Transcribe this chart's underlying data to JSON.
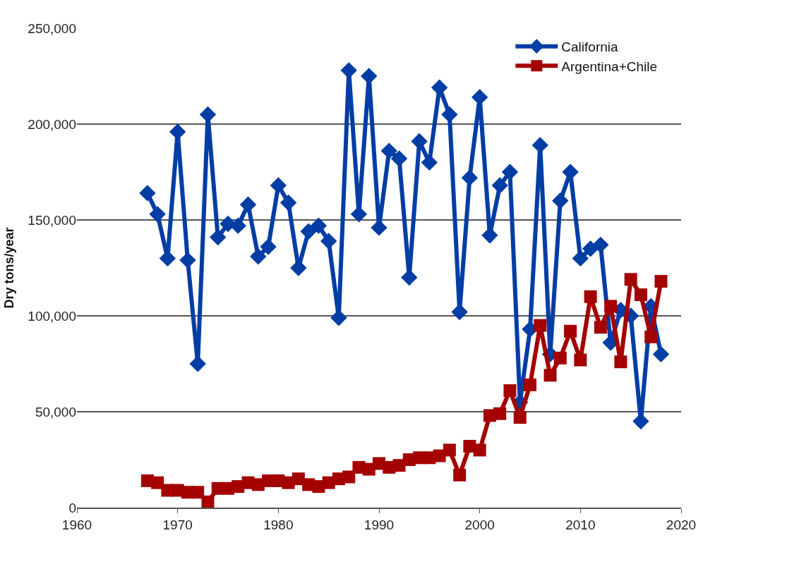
{
  "chart_data": {
    "type": "line",
    "ylabel": "Dry tons/year",
    "x": [
      1967,
      1968,
      1969,
      1970,
      1971,
      1972,
      1973,
      1974,
      1975,
      1976,
      1977,
      1978,
      1979,
      1980,
      1981,
      1982,
      1983,
      1984,
      1985,
      1986,
      1987,
      1988,
      1989,
      1990,
      1991,
      1992,
      1993,
      1994,
      1995,
      1996,
      1997,
      1998,
      1999,
      2000,
      2001,
      2002,
      2003,
      2004,
      2005,
      2006,
      2007,
      2008,
      2009,
      2010,
      2011,
      2012,
      2013,
      2014,
      2015,
      2016,
      2017,
      2018
    ],
    "series": [
      {
        "name": "California",
        "color": "#003da5",
        "marker": "diamond",
        "values": [
          164000,
          153000,
          130000,
          196000,
          129000,
          75000,
          205000,
          141000,
          148000,
          147000,
          158000,
          131000,
          136000,
          168000,
          159000,
          125000,
          144000,
          147000,
          139000,
          99000,
          228000,
          153000,
          225000,
          146000,
          186000,
          182000,
          120000,
          191000,
          180000,
          219000,
          205000,
          102000,
          172000,
          214000,
          142000,
          168000,
          175000,
          55000,
          93000,
          189000,
          80000,
          160000,
          175000,
          130000,
          135000,
          137000,
          86000,
          103000,
          100000,
          45000,
          105000,
          80000
        ]
      },
      {
        "name": "Argentina+Chile",
        "color": "#a50000",
        "marker": "square",
        "values": [
          14000,
          13000,
          9000,
          9000,
          8000,
          8000,
          3000,
          10000,
          10000,
          11000,
          13000,
          12000,
          14000,
          14000,
          13000,
          15000,
          12000,
          11000,
          13000,
          15000,
          16000,
          21000,
          20000,
          23000,
          21000,
          22000,
          25000,
          26000,
          26000,
          27000,
          30000,
          17000,
          32000,
          30000,
          48000,
          49000,
          61000,
          47000,
          64000,
          95000,
          69000,
          78000,
          92000,
          77000,
          110000,
          94000,
          105000,
          76000,
          119000,
          111000,
          89000,
          118000
        ]
      }
    ],
    "xlim": [
      1960,
      2020
    ],
    "xticks": [
      1960,
      1970,
      1980,
      1990,
      2000,
      2010,
      2020
    ],
    "ylim": [
      0,
      250000
    ],
    "yticks": [
      {
        "value": 0,
        "label": "0"
      },
      {
        "value": 50000,
        "label": "50,000"
      },
      {
        "value": 100000,
        "label": "100,000"
      },
      {
        "value": 150000,
        "label": "150,000"
      },
      {
        "value": 200000,
        "label": "200,000"
      },
      {
        "value": 250000,
        "label": "250,000"
      }
    ],
    "grid": "y",
    "legend": "top right",
    "line_style": "solid"
  }
}
